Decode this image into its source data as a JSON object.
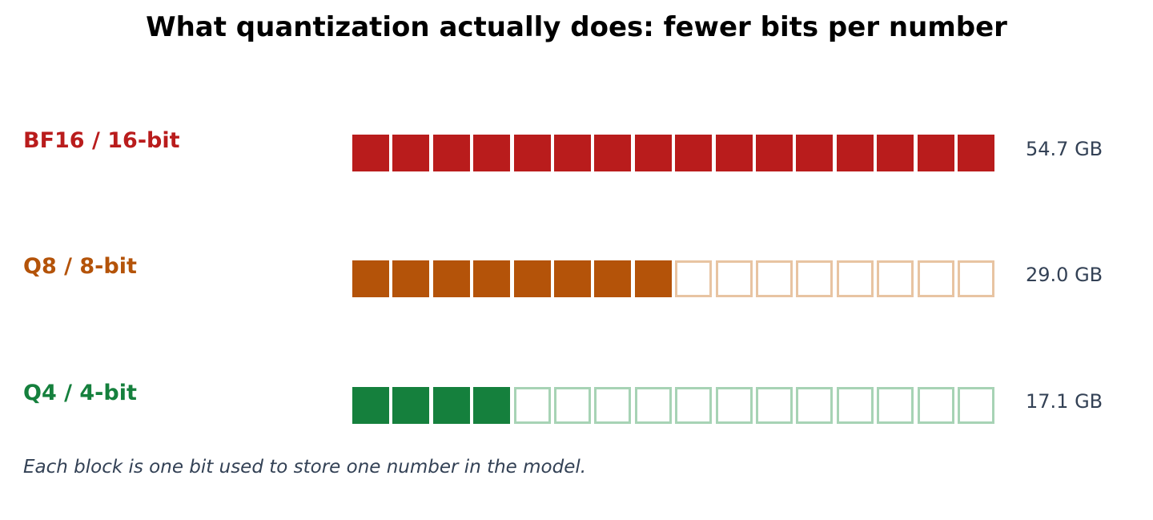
{
  "title": "What quantization actually does: fewer bits per number",
  "caption": "Each block is one bit used to store one number in the model.",
  "total_bits": 16,
  "rows": [
    {
      "label": "BF16 / 16-bit",
      "bits_used": 16,
      "size": "54.7 GB",
      "color": "#b91c1c",
      "empty_border": "#e6a1a1"
    },
    {
      "label": "Q8 / 8-bit",
      "bits_used": 8,
      "size": "29.0 GB",
      "color": "#b45309",
      "empty_border": "#e8c4a2"
    },
    {
      "label": "Q4 / 4-bit",
      "bits_used": 4,
      "size": "17.1 GB",
      "color": "#15803d",
      "empty_border": "#a7d3b5"
    }
  ]
}
